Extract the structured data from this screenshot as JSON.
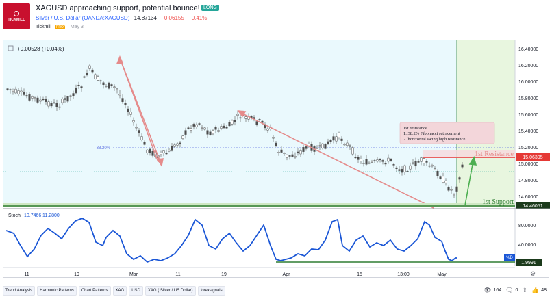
{
  "header": {
    "logo_text": "TICKMILL",
    "title": "XAGUSD approaching support, potential bounce!",
    "badge": "LONG",
    "symbol": "Silver / U.S. Dollar (OANDA:XAGUSD)",
    "price": "14.87134",
    "change": "−0.06155",
    "change_pct": "−0.41%",
    "author": "Tickmill",
    "author_badge": "PRO",
    "date": "May 3"
  },
  "chart": {
    "legend_change": "+0.00528 (+0.04%)",
    "stoch_label": "Stoch",
    "stoch_k": "10.7466",
    "stoch_d": "11.2800",
    "fib_label": "38.20%",
    "note_title": "1st resistance",
    "note_line1": "1. 38.2% Fibonacci retracement",
    "note_line2": "2. horizontal swing high resistance",
    "resistance_label": "1st Resistance",
    "support_label": "1st Support",
    "resistance_price": "15.06395",
    "support_price": "14.46051",
    "stoch_badge": "%D",
    "stoch_value": "1.9991",
    "price_ticks": [
      "16.40000",
      "16.20000",
      "16.00000",
      "15.80000",
      "15.60000",
      "15.40000",
      "15.20000",
      "15.00000",
      "14.80000",
      "14.60000"
    ],
    "stoch_ticks": [
      "80.0000",
      "40.0000"
    ],
    "time_ticks": [
      "11",
      "19",
      "Mar",
      "11",
      "19",
      "Apr",
      "15",
      "13:00",
      "May"
    ],
    "colors": {
      "up_candle": "#4d4d4d",
      "down_candle": "#5d5d5d",
      "trend_arrow": "#e58b8b",
      "resistance": "#e53935",
      "support": "#2e7d32",
      "stoch": "#1a56d6",
      "fib": "#5b6ee1",
      "zone": "#eaf9fd",
      "target_zone": "#e8f6df"
    }
  },
  "footer": {
    "tags": [
      "Trend Analysis",
      "Harmonic Patterns",
      "Chart Patterns",
      "XAG",
      "USD",
      "XAG ( Silver / US Dollar)",
      "forexsignals"
    ],
    "views": "164",
    "comments": "0",
    "likes": "48"
  }
}
